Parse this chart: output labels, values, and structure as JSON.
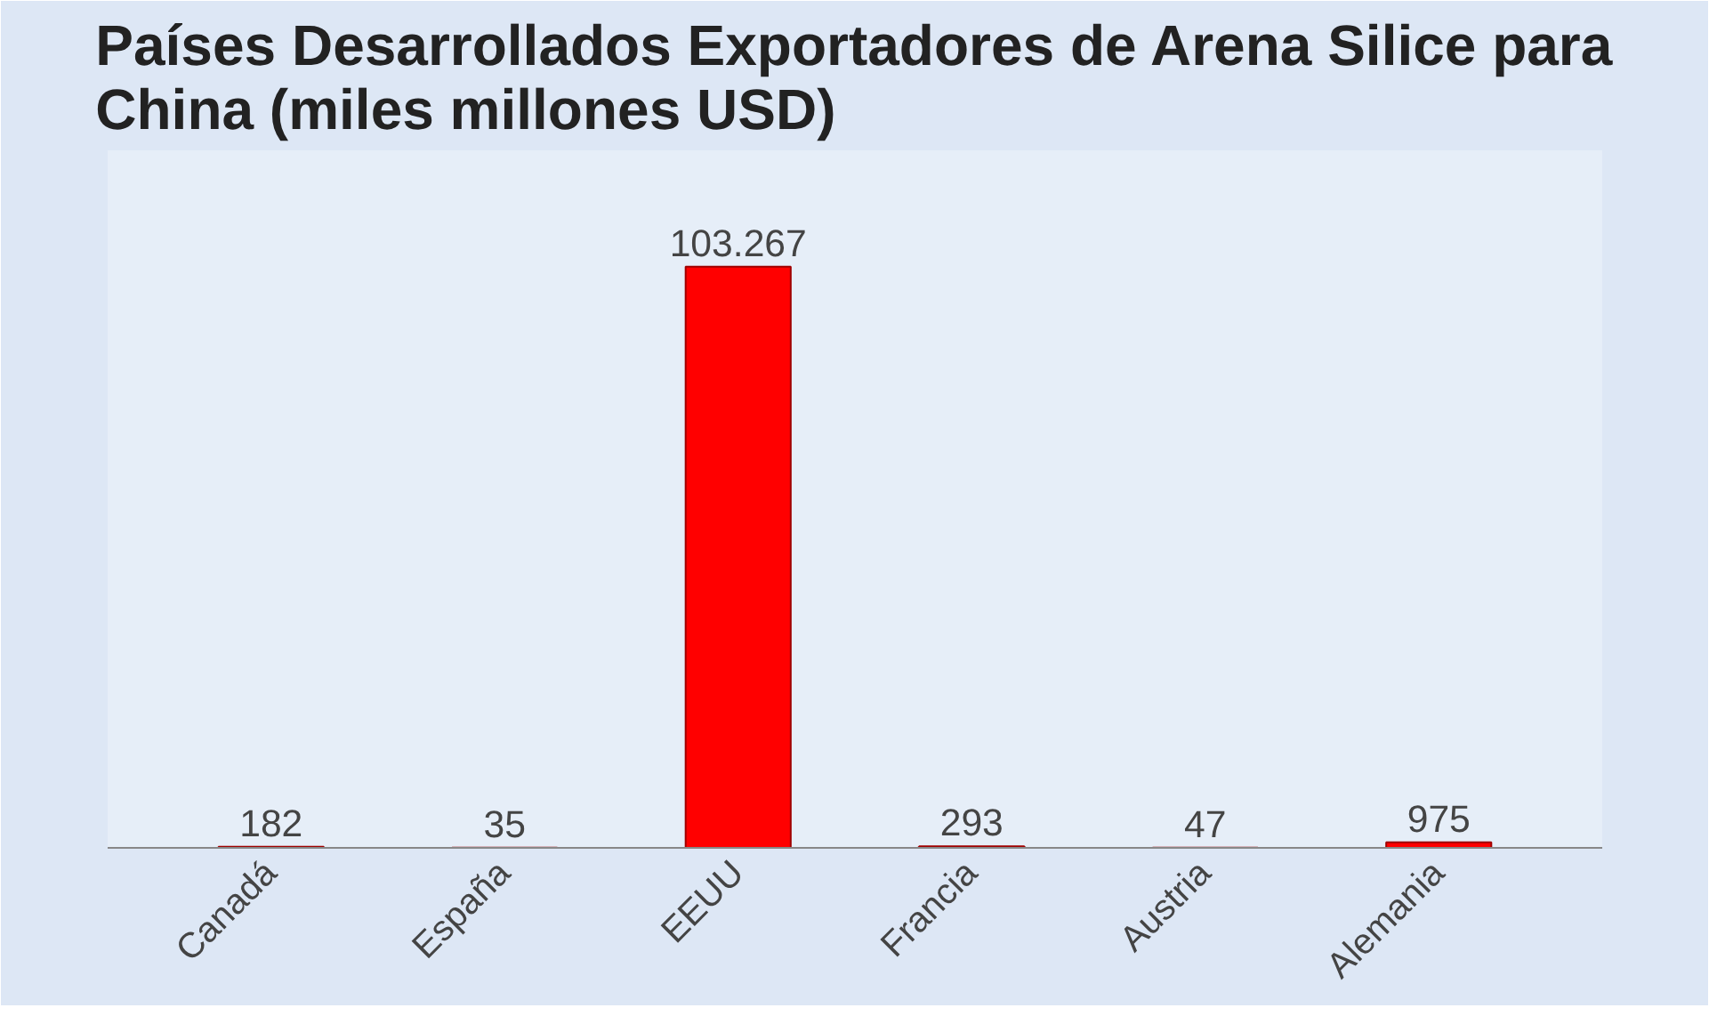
{
  "chart_data": {
    "type": "bar",
    "title": "Países Desarrollados Exportadores de Arena Silice para China (miles millones USD)",
    "categories": [
      "Canadá",
      "España",
      "EEUU",
      "Francia",
      "Austria",
      "Alemania"
    ],
    "values": [
      182,
      35,
      103267,
      293,
      47,
      975
    ],
    "value_labels": [
      "182",
      "35",
      "103.267",
      "293",
      "47",
      "975"
    ],
    "color": "#ff0000",
    "grid": false
  }
}
